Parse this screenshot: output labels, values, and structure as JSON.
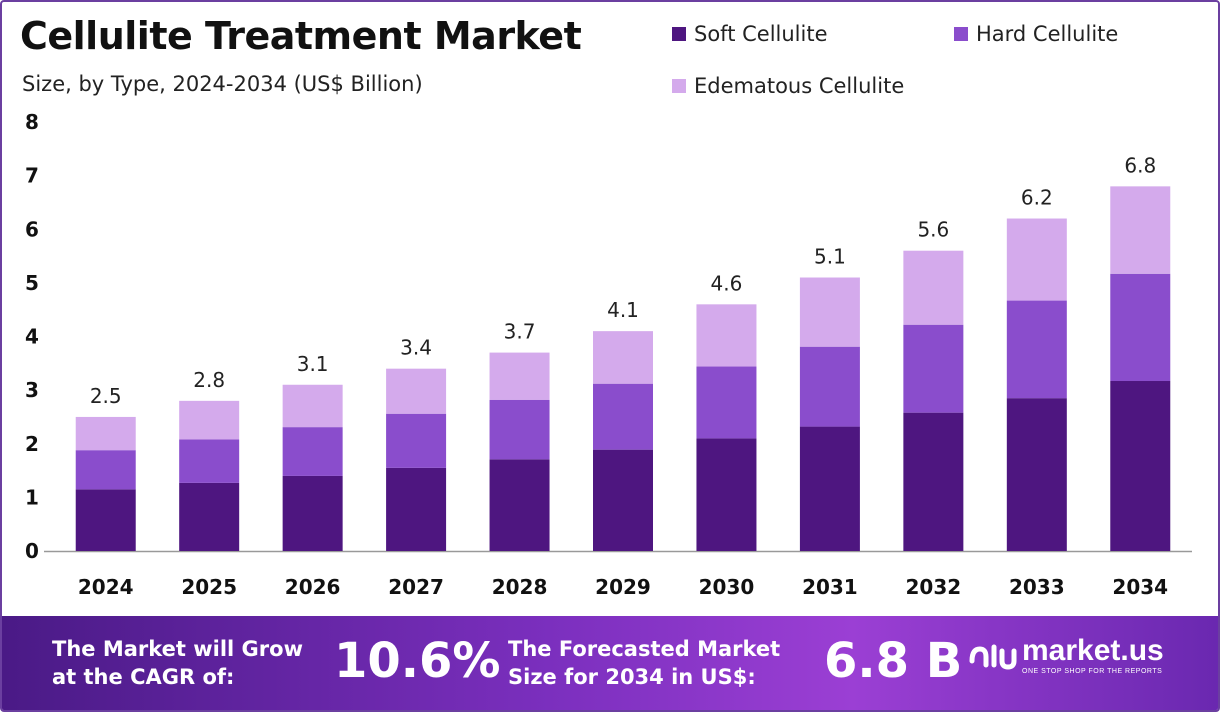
{
  "colors": {
    "soft": "#4e1680",
    "hard": "#8a4dcc",
    "edematous": "#d4aaec",
    "axis": "#999999",
    "footer_start": "#4a1a86",
    "footer_end": "#9b3fd4"
  },
  "footer": {
    "cagr_label_line1": "The Market will Grow",
    "cagr_label_line2": "at the CAGR of:",
    "cagr_value": "10.6%",
    "forecast_label_line1": "The Forecasted Market",
    "forecast_label_line2": "Size for 2034 in US$:",
    "forecast_value": "6.8 B",
    "brand_name": "market.us",
    "brand_tagline": "ONE STOP SHOP FOR THE REPORTS"
  },
  "chart_data": {
    "type": "bar",
    "stacked": true,
    "title": "Cellulite Treatment Market",
    "subtitle": "Size, by Type, 2024-2034 (US$ Billion)",
    "categories": [
      "2024",
      "2025",
      "2026",
      "2027",
      "2028",
      "2029",
      "2030",
      "2031",
      "2032",
      "2033",
      "2034"
    ],
    "series": [
      {
        "name": "Soft Cellulite",
        "values": [
          1.15,
          1.27,
          1.4,
          1.55,
          1.71,
          1.89,
          2.1,
          2.32,
          2.58,
          2.85,
          3.17
        ]
      },
      {
        "name": "Hard Cellulite",
        "values": [
          0.73,
          0.81,
          0.91,
          1.01,
          1.11,
          1.23,
          1.34,
          1.49,
          1.64,
          1.82,
          2.0
        ]
      },
      {
        "name": "Edematous Cellulite",
        "values": [
          0.62,
          0.72,
          0.79,
          0.84,
          0.88,
          0.98,
          1.16,
          1.29,
          1.38,
          1.53,
          1.63
        ]
      }
    ],
    "totals": [
      "2.5",
      "2.8",
      "3.1",
      "3.4",
      "3.7",
      "4.1",
      "4.6",
      "5.1",
      "5.6",
      "6.2",
      "6.8"
    ],
    "ylim": [
      0,
      8
    ],
    "yticks": [
      "0",
      "1",
      "2",
      "3",
      "4",
      "5",
      "6",
      "7",
      "8"
    ],
    "grid": false,
    "legend": "top-right"
  }
}
